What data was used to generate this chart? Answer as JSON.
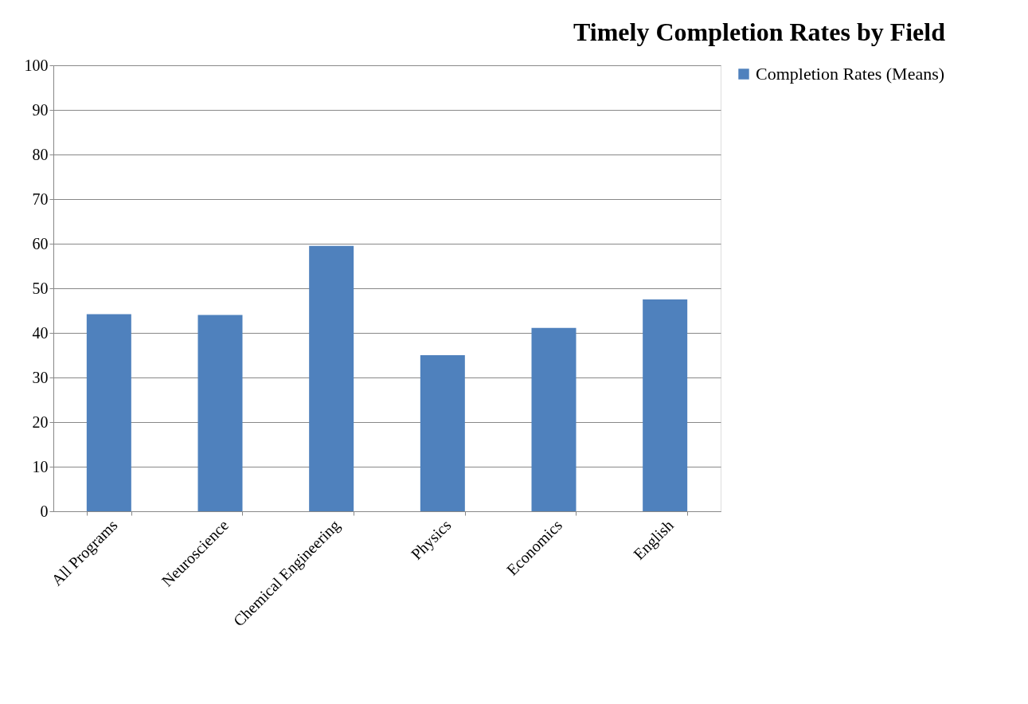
{
  "chart_data": {
    "type": "bar",
    "title": "Timely Completion Rates by Field",
    "categories": [
      "All Programs",
      "Neuroscience",
      "Chemical Engineering",
      "Physics",
      "Economics",
      "English"
    ],
    "series": [
      {
        "name": "Completion Rates (Means)",
        "color": "#4f81bd",
        "values": [
          44.2,
          44.0,
          59.5,
          35.0,
          41.1,
          47.5
        ]
      }
    ],
    "ylim": [
      0,
      100
    ],
    "yticks": [
      0,
      10,
      20,
      30,
      40,
      50,
      60,
      70,
      80,
      90,
      100
    ],
    "grid": "y",
    "legend": "right"
  }
}
